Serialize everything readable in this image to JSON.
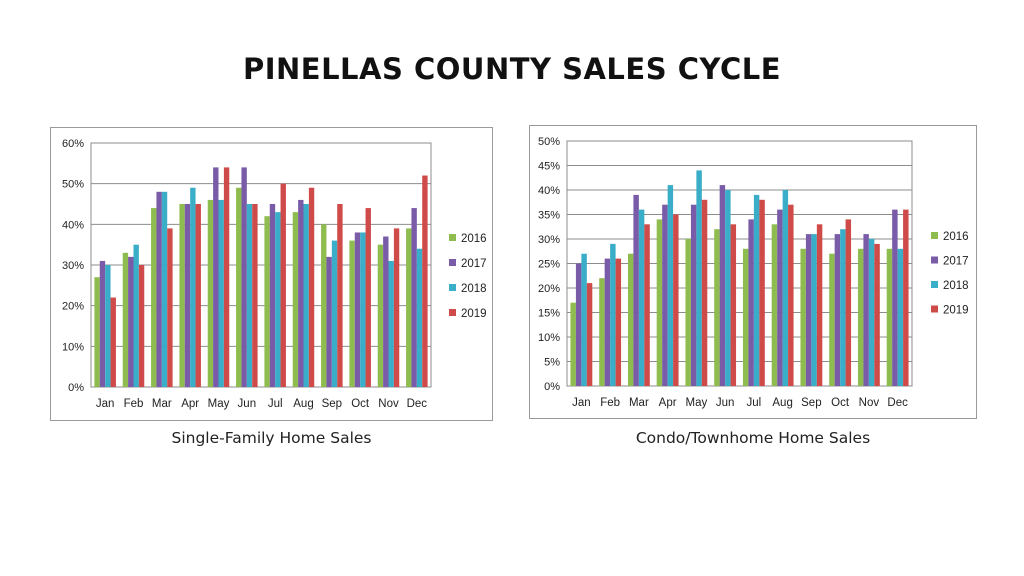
{
  "title": "PINELLAS COUNTY SALES CYCLE",
  "captions": [
    "Single-Family Home Sales",
    "Condo/Townhome Home Sales"
  ],
  "colors": {
    "2016": "#8fbc4f",
    "2017": "#7a5ba8",
    "2018": "#3aaec8",
    "2019": "#cf4b4a"
  },
  "chart_data": [
    {
      "type": "bar",
      "title": "",
      "xlabel": "",
      "ylabel": "",
      "ylim": [
        0,
        60
      ],
      "yticks": [
        0,
        10,
        20,
        30,
        40,
        50,
        60
      ],
      "ytick_labels": [
        "0%",
        "10%",
        "20%",
        "30%",
        "40%",
        "50%",
        "60%"
      ],
      "grid": true,
      "legend": "right",
      "categories": [
        "Jan",
        "Feb",
        "Mar",
        "Apr",
        "May",
        "Jun",
        "Jul",
        "Aug",
        "Sep",
        "Oct",
        "Nov",
        "Dec"
      ],
      "series": [
        {
          "name": "2016",
          "values": [
            27,
            33,
            44,
            45,
            46,
            49,
            42,
            43,
            40,
            36,
            35,
            39
          ]
        },
        {
          "name": "2017",
          "values": [
            31,
            32,
            48,
            45,
            54,
            54,
            45,
            46,
            32,
            38,
            37,
            44
          ]
        },
        {
          "name": "2018",
          "values": [
            30,
            35,
            48,
            49,
            46,
            45,
            43,
            45,
            36,
            38,
            31,
            34
          ]
        },
        {
          "name": "2019",
          "values": [
            22,
            30,
            39,
            45,
            54,
            45,
            50,
            49,
            45,
            44,
            39,
            52
          ]
        }
      ]
    },
    {
      "type": "bar",
      "title": "",
      "xlabel": "",
      "ylabel": "",
      "ylim": [
        0,
        50
      ],
      "yticks": [
        0,
        5,
        10,
        15,
        20,
        25,
        30,
        35,
        40,
        45,
        50
      ],
      "ytick_labels": [
        "0%",
        "5%",
        "10%",
        "15%",
        "20%",
        "25%",
        "30%",
        "35%",
        "40%",
        "45%",
        "50%"
      ],
      "grid": true,
      "legend": "right",
      "categories": [
        "Jan",
        "Feb",
        "Mar",
        "Apr",
        "May",
        "Jun",
        "Jul",
        "Aug",
        "Sep",
        "Oct",
        "Nov",
        "Dec"
      ],
      "series": [
        {
          "name": "2016",
          "values": [
            17,
            22,
            27,
            34,
            30,
            32,
            28,
            33,
            28,
            27,
            28,
            28
          ]
        },
        {
          "name": "2017",
          "values": [
            25,
            26,
            39,
            37,
            37,
            41,
            34,
            36,
            31,
            31,
            31,
            36
          ]
        },
        {
          "name": "2018",
          "values": [
            27,
            29,
            36,
            41,
            44,
            40,
            39,
            40,
            31,
            32,
            30,
            28
          ]
        },
        {
          "name": "2019",
          "values": [
            21,
            26,
            33,
            35,
            38,
            33,
            38,
            37,
            33,
            34,
            29,
            36
          ]
        }
      ]
    }
  ]
}
